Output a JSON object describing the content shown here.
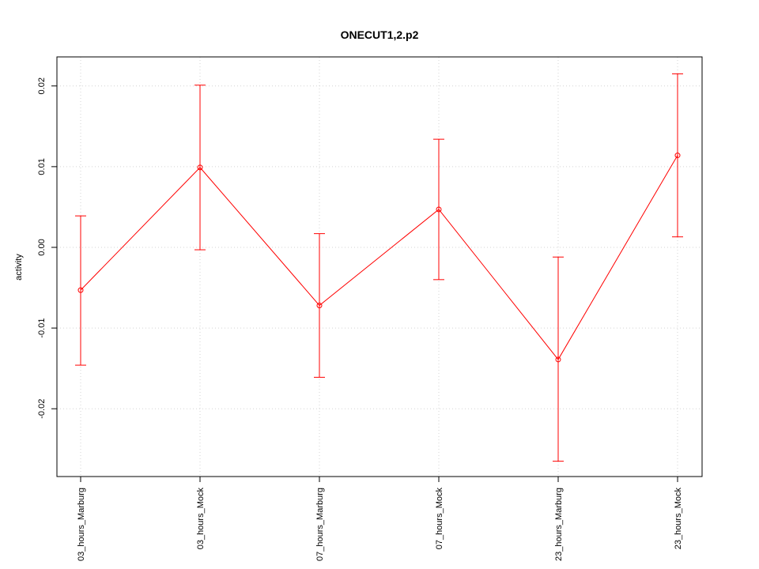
{
  "chart_data": {
    "type": "line",
    "title": "ONECUT1,2.p2",
    "xlabel": "",
    "ylabel": "activity",
    "categories": [
      "03_hours_Marburg",
      "03_hours_Mock",
      "07_hours_Marburg",
      "07_hours_Mock",
      "23_hours_Marburg",
      "23_hours_Mock"
    ],
    "series": [
      {
        "values": [
          -0.0053,
          0.0099,
          -0.0072,
          0.0047,
          -0.0139,
          0.0114
        ],
        "lower": [
          -0.0146,
          -0.0003,
          -0.0161,
          -0.004,
          -0.0265,
          0.0013
        ],
        "upper": [
          0.0039,
          0.0201,
          0.0017,
          0.0134,
          -0.0012,
          0.0215
        ]
      }
    ],
    "ylim": [
      -0.0284,
      0.0236
    ],
    "yticks": [
      -0.02,
      -0.01,
      0.0,
      0.01,
      0.02
    ],
    "ytick_labels": [
      "-0.02",
      "-0.01",
      "0.00",
      "0.01",
      "0.02"
    ],
    "grid": true,
    "colors": {
      "series": "#ff0000",
      "grid": "#d3d3d3",
      "axis": "#000000"
    }
  }
}
